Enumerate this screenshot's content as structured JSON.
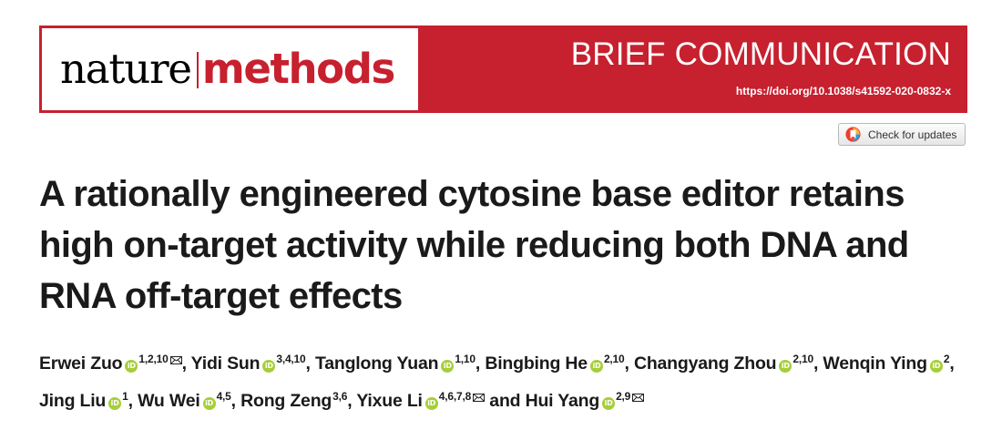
{
  "header": {
    "journal_part1": "nature",
    "journal_part2": "methods",
    "article_type": "BRIEF COMMUNICATION",
    "doi": "https://doi.org/10.1038/s41592-020-0832-x",
    "accent_color": "#c7202f"
  },
  "check_updates": {
    "label": "Check for updates",
    "icon": "crossmark-icon"
  },
  "title": "A rationally engineered cytosine base editor retains high on-target activity while reducing both DNA and RNA off-target effects",
  "authors": [
    {
      "name": "Erwei Zuo",
      "aff": "1,2,10",
      "orcid": true,
      "corresponding": true
    },
    {
      "name": "Yidi Sun",
      "aff": "3,4,10",
      "orcid": true,
      "corresponding": false
    },
    {
      "name": "Tanglong Yuan",
      "aff": "1,10",
      "orcid": true,
      "corresponding": false
    },
    {
      "name": "Bingbing He",
      "aff": "2,10",
      "orcid": true,
      "corresponding": false
    },
    {
      "name": "Changyang Zhou",
      "aff": "2,10",
      "orcid": true,
      "corresponding": false
    },
    {
      "name": "Wenqin Ying",
      "aff": "2",
      "orcid": true,
      "corresponding": false
    },
    {
      "name": "Jing Liu",
      "aff": "1",
      "orcid": true,
      "corresponding": false
    },
    {
      "name": "Wu Wei",
      "aff": "4,5",
      "orcid": true,
      "corresponding": false
    },
    {
      "name": "Rong Zeng",
      "aff": "3,6",
      "orcid": false,
      "corresponding": false
    },
    {
      "name": "Yixue Li",
      "aff": "4,6,7,8",
      "orcid": true,
      "corresponding": true
    },
    {
      "name": "Hui Yang",
      "aff": "2,9",
      "orcid": true,
      "corresponding": true
    }
  ],
  "author_separators": {
    "comma": ", ",
    "and": " and "
  },
  "icons": {
    "orcid": "orcid-icon",
    "mail": "mail-icon"
  }
}
